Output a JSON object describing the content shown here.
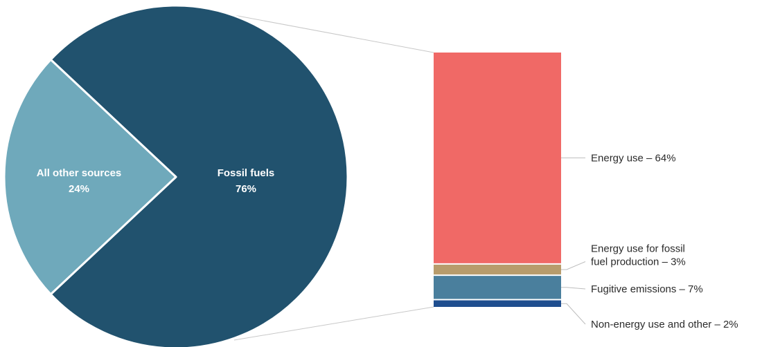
{
  "chart_data": [
    {
      "type": "pie",
      "slices": [
        {
          "name": "Fossil fuels",
          "value": 76,
          "value_label": "76%",
          "color": "#21526e"
        },
        {
          "name": "All other sources",
          "value": 24,
          "value_label": "24%",
          "color": "#6fa9bb"
        }
      ]
    },
    {
      "type": "bar",
      "stacked": true,
      "parent": "Fossil fuels",
      "segments": [
        {
          "label_lines": [
            "Energy use – 64%"
          ],
          "value": 64,
          "color": "#f06966"
        },
        {
          "label_lines": [
            "Energy use for fossil",
            "fuel production – 3%"
          ],
          "value": 3,
          "color": "#b89c6c"
        },
        {
          "label_lines": [
            "Fugitive emissions – 7%"
          ],
          "value": 7,
          "color": "#4a7f9d"
        },
        {
          "label_lines": [
            "Non-energy use and other – 2%"
          ],
          "value": 2,
          "color": "#1f4e8f"
        }
      ]
    }
  ]
}
